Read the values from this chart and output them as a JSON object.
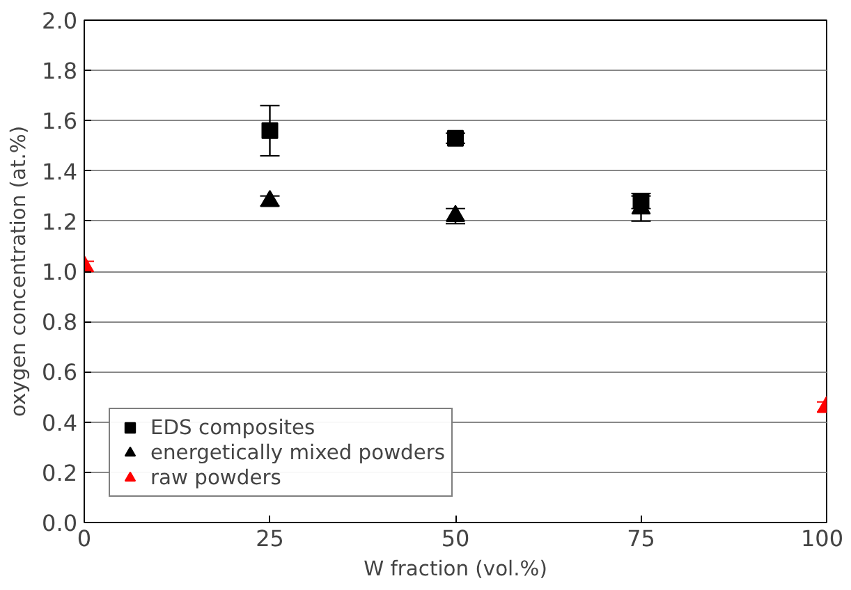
{
  "chart_data": {
    "type": "scatter",
    "xlabel": "W fraction (vol.%)",
    "ylabel": "oxygen concentration (at.%)",
    "xlim": [
      0,
      100
    ],
    "xticks": [
      0,
      25,
      50,
      75,
      100
    ],
    "ylim": [
      0,
      2.0
    ],
    "yticks": [
      {
        "value": 0,
        "label": "0.0"
      },
      {
        "value": 0.2,
        "label": "0.2"
      },
      {
        "value": 0.4,
        "label": "0.4"
      },
      {
        "value": 0.6,
        "label": "0.6"
      },
      {
        "value": 0.8,
        "label": "0.8"
      },
      {
        "value": 1.0,
        "label": "1.0"
      },
      {
        "value": 1.2,
        "label": "1.2"
      },
      {
        "value": 1.4,
        "label": "1.4"
      },
      {
        "value": 1.6,
        "label": "1.6"
      },
      {
        "value": 1.8,
        "label": "1.8"
      },
      {
        "value": 2.0,
        "label": "2.0"
      }
    ],
    "grid": "y",
    "legend": "bottom left",
    "series": [
      {
        "name": "EDS composites",
        "color": "#000000",
        "marker": "square",
        "x": [
          25,
          50,
          75
        ],
        "values": [
          1.56,
          1.53,
          1.28
        ],
        "errors": [
          0.1,
          0.02,
          0.03
        ]
      },
      {
        "name": "energetically mixed powders",
        "color": "#000000",
        "marker": "triangle",
        "x": [
          25,
          50,
          75
        ],
        "values": [
          1.28,
          1.22,
          1.25
        ],
        "errors": [
          0.02,
          0.03,
          0.05
        ]
      },
      {
        "name": "raw powders",
        "color": "#ff0000",
        "marker": "triangle",
        "x": [
          0,
          100
        ],
        "values": [
          1.02,
          0.46
        ],
        "errors": [
          0.02,
          0.02
        ]
      }
    ]
  }
}
